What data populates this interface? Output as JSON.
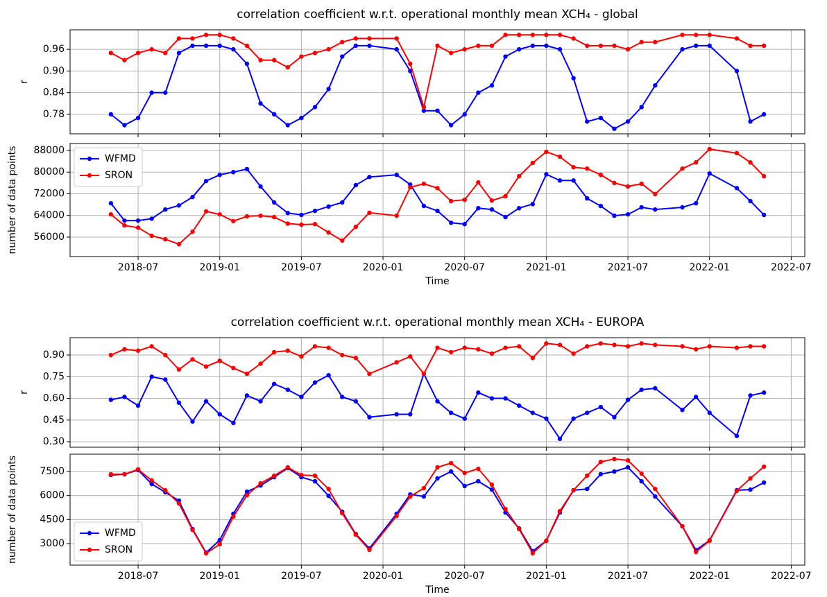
{
  "chart_data": [
    {
      "type": "line",
      "title": "correlation coefficient w.r.t. operational monthly mean XCH₄ - global",
      "ylabel": "r",
      "x": [
        "2018-05",
        "2018-06",
        "2018-07",
        "2018-08",
        "2018-09",
        "2018-10",
        "2018-11",
        "2018-12",
        "2019-01",
        "2019-02",
        "2019-03",
        "2019-04",
        "2019-05",
        "2019-06",
        "2019-07",
        "2019-08",
        "2019-09",
        "2019-10",
        "2019-11",
        "2019-12",
        "2020-02",
        "2020-03",
        "2020-04",
        "2020-05",
        "2020-06",
        "2020-07",
        "2020-08",
        "2020-09",
        "2020-10",
        "2020-11",
        "2020-12",
        "2021-01",
        "2021-02",
        "2021-03",
        "2021-04",
        "2021-05",
        "2021-06",
        "2021-07",
        "2021-08",
        "2021-09",
        "2021-11",
        "2021-12",
        "2022-01",
        "2022-03",
        "2022-04",
        "2022-05"
      ],
      "series": [
        {
          "color": "#0000ff",
          "values": [
            0.78,
            0.75,
            0.77,
            0.84,
            0.84,
            0.95,
            0.97,
            0.97,
            0.97,
            0.96,
            0.92,
            0.81,
            0.78,
            0.75,
            0.77,
            0.8,
            0.85,
            0.94,
            0.97,
            0.97,
            0.96,
            0.9,
            0.79,
            0.79,
            0.75,
            0.78,
            0.84,
            0.86,
            0.94,
            0.96,
            0.97,
            0.97,
            0.96,
            0.88,
            0.76,
            0.77,
            0.74,
            0.76,
            0.8,
            0.86,
            0.96,
            0.97,
            0.97,
            0.9,
            0.76,
            0.78
          ]
        },
        {
          "color": "#ff0000",
          "values": [
            0.95,
            0.93,
            0.95,
            0.96,
            0.95,
            0.99,
            0.99,
            1.0,
            1.0,
            0.99,
            0.97,
            0.93,
            0.93,
            0.91,
            0.94,
            0.95,
            0.96,
            0.98,
            0.99,
            0.99,
            0.99,
            0.92,
            0.8,
            0.97,
            0.95,
            0.96,
            0.97,
            0.97,
            1.0,
            1.0,
            1.0,
            1.0,
            1.0,
            0.99,
            0.97,
            0.97,
            0.97,
            0.96,
            0.98,
            0.98,
            1.0,
            1.0,
            1.0,
            0.99,
            0.97,
            0.97
          ]
        }
      ],
      "xlim": [
        "2018-02",
        "2022-08"
      ],
      "xticks": [
        "2018-07",
        "2019-01",
        "2019-07",
        "2020-01",
        "2020-07",
        "2021-01",
        "2021-07",
        "2022-01",
        "2022-07"
      ],
      "xtick_labels": false,
      "ylim": [
        0.726,
        1.014
      ],
      "yticks": [
        0.78,
        0.84,
        {
          "value": 0.9,
          "label": "0.90"
        },
        0.96
      ],
      "grid": true
    },
    {
      "type": "line",
      "ylabel": "number of data points",
      "xlabel": "Time",
      "x": [
        "2018-05",
        "2018-06",
        "2018-07",
        "2018-08",
        "2018-09",
        "2018-10",
        "2018-11",
        "2018-12",
        "2019-01",
        "2019-02",
        "2019-03",
        "2019-04",
        "2019-05",
        "2019-06",
        "2019-07",
        "2019-08",
        "2019-09",
        "2019-10",
        "2019-11",
        "2019-12",
        "2020-02",
        "2020-03",
        "2020-04",
        "2020-05",
        "2020-06",
        "2020-07",
        "2020-08",
        "2020-09",
        "2020-10",
        "2020-11",
        "2020-12",
        "2021-01",
        "2021-02",
        "2021-03",
        "2021-04",
        "2021-05",
        "2021-06",
        "2021-07",
        "2021-08",
        "2021-09",
        "2021-11",
        "2021-12",
        "2022-01",
        "2022-03",
        "2022-04",
        "2022-05"
      ],
      "series": [
        {
          "name": "WFMD",
          "color": "#0000ff",
          "values": [
            68500,
            62100,
            62100,
            62800,
            66200,
            67700,
            70800,
            76700,
            79000,
            80000,
            81100,
            74700,
            68800,
            64900,
            64200,
            65700,
            67300,
            68800,
            75200,
            78200,
            79000,
            75400,
            67500,
            65700,
            61300,
            60800,
            66700,
            66200,
            63400,
            66700,
            68200,
            79200,
            76900,
            76900,
            70300,
            67500,
            63900,
            64400,
            67000,
            66200,
            67000,
            68500,
            79500,
            74100,
            69300,
            64200
          ]
        },
        {
          "name": "SRON",
          "color": "#ff0000",
          "values": [
            64400,
            60300,
            59500,
            56500,
            55200,
            53400,
            58000,
            65500,
            64400,
            61900,
            63700,
            63900,
            63400,
            61000,
            60600,
            60800,
            57700,
            54700,
            59800,
            65000,
            63900,
            74400,
            75700,
            74100,
            69300,
            69800,
            76200,
            69500,
            71100,
            78500,
            83400,
            87500,
            85700,
            81800,
            81300,
            79000,
            76000,
            74700,
            75700,
            71900,
            81300,
            83600,
            88500,
            87000,
            83600,
            78500
          ]
        }
      ],
      "xlim": [
        "2018-02",
        "2022-08"
      ],
      "xticks": [
        "2018-07",
        "2019-01",
        "2019-07",
        "2020-01",
        "2020-07",
        "2021-01",
        "2021-07",
        "2022-01",
        "2022-07"
      ],
      "ylim": [
        48820,
        90560
      ],
      "yticks": [
        56000,
        64000,
        72000,
        80000,
        88000
      ],
      "grid": true,
      "legend": "upper left"
    },
    {
      "type": "line",
      "title": "correlation coefficient w.r.t. operational monthly mean XCH₄ - EUROPA",
      "ylabel": "r",
      "x": [
        "2018-05",
        "2018-06",
        "2018-07",
        "2018-08",
        "2018-09",
        "2018-10",
        "2018-11",
        "2018-12",
        "2019-01",
        "2019-02",
        "2019-03",
        "2019-04",
        "2019-05",
        "2019-06",
        "2019-07",
        "2019-08",
        "2019-09",
        "2019-10",
        "2019-11",
        "2019-12",
        "2020-02",
        "2020-03",
        "2020-04",
        "2020-05",
        "2020-06",
        "2020-07",
        "2020-08",
        "2020-09",
        "2020-10",
        "2020-11",
        "2020-12",
        "2021-01",
        "2021-02",
        "2021-03",
        "2021-04",
        "2021-05",
        "2021-06",
        "2021-07",
        "2021-08",
        "2021-09",
        "2021-11",
        "2021-12",
        "2022-01",
        "2022-03",
        "2022-04",
        "2022-05"
      ],
      "series": [
        {
          "color": "#0000ff",
          "values": [
            0.59,
            0.61,
            0.55,
            0.75,
            0.73,
            0.57,
            0.44,
            0.58,
            0.49,
            0.43,
            0.62,
            0.58,
            0.7,
            0.66,
            0.61,
            0.71,
            0.76,
            0.61,
            0.58,
            0.47,
            0.49,
            0.49,
            0.77,
            0.58,
            0.5,
            0.46,
            0.64,
            0.6,
            0.6,
            0.55,
            0.5,
            0.46,
            0.32,
            0.46,
            0.5,
            0.54,
            0.47,
            0.59,
            0.66,
            0.67,
            0.52,
            0.61,
            0.5,
            0.34,
            0.62,
            0.64
          ]
        },
        {
          "color": "#ff0000",
          "values": [
            0.9,
            0.94,
            0.93,
            0.96,
            0.9,
            0.8,
            0.87,
            0.82,
            0.86,
            0.81,
            0.77,
            0.84,
            0.92,
            0.93,
            0.89,
            0.96,
            0.95,
            0.9,
            0.88,
            0.77,
            0.85,
            0.89,
            0.77,
            0.95,
            0.92,
            0.95,
            0.94,
            0.91,
            0.95,
            0.96,
            0.88,
            0.98,
            0.97,
            0.91,
            0.96,
            0.98,
            0.97,
            0.96,
            0.98,
            0.97,
            0.96,
            0.94,
            0.96,
            0.95,
            0.96,
            0.96
          ]
        }
      ],
      "xlim": [
        "2018-02",
        "2022-08"
      ],
      "xticks": [
        "2018-07",
        "2019-01",
        "2019-07",
        "2020-01",
        "2020-07",
        "2021-01",
        "2021-07",
        "2022-01",
        "2022-07"
      ],
      "xtick_labels": false,
      "ylim": [
        0.262,
        1.02
      ],
      "yticks": [
        {
          "value": 0.3,
          "label": "0.30"
        },
        0.45,
        {
          "value": 0.6,
          "label": "0.60"
        },
        0.75,
        {
          "value": 0.9,
          "label": "0.90"
        }
      ],
      "grid": true
    },
    {
      "type": "line",
      "ylabel": "number of data points",
      "xlabel": "Time",
      "x": [
        "2018-05",
        "2018-06",
        "2018-07",
        "2018-08",
        "2018-09",
        "2018-10",
        "2018-11",
        "2018-12",
        "2019-01",
        "2019-02",
        "2019-03",
        "2019-04",
        "2019-05",
        "2019-06",
        "2019-07",
        "2019-08",
        "2019-09",
        "2019-10",
        "2019-11",
        "2019-12",
        "2020-02",
        "2020-03",
        "2020-04",
        "2020-05",
        "2020-06",
        "2020-07",
        "2020-08",
        "2020-09",
        "2020-10",
        "2020-11",
        "2020-12",
        "2021-01",
        "2021-02",
        "2021-03",
        "2021-04",
        "2021-05",
        "2021-06",
        "2021-07",
        "2021-08",
        "2021-09",
        "2021-11",
        "2021-12",
        "2022-01",
        "2022-03",
        "2022-04",
        "2022-05"
      ],
      "series": [
        {
          "name": "WFMD",
          "color": "#0000ff",
          "values": [
            7280,
            7330,
            7590,
            6720,
            6200,
            5680,
            3910,
            2440,
            3220,
            4860,
            6240,
            6630,
            7150,
            7710,
            7150,
            6890,
            5980,
            4990,
            3600,
            2700,
            4860,
            6070,
            5940,
            7070,
            7500,
            6590,
            6890,
            6370,
            4940,
            3950,
            2530,
            3180,
            4940,
            6330,
            6410,
            7330,
            7500,
            7760,
            6890,
            5940,
            4080,
            2600,
            3200,
            6330,
            6370,
            6810
          ]
        },
        {
          "name": "SRON",
          "color": "#ff0000",
          "values": [
            7330,
            7330,
            7630,
            6940,
            6330,
            5510,
            3860,
            2400,
            2960,
            4680,
            6020,
            6760,
            7240,
            7760,
            7280,
            7240,
            6410,
            4900,
            3560,
            2610,
            4730,
            5940,
            6460,
            7760,
            8020,
            7410,
            7670,
            6680,
            5160,
            3910,
            2400,
            3180,
            5030,
            6330,
            7240,
            8100,
            8280,
            8190,
            7370,
            6410,
            4080,
            2480,
            3180,
            6290,
            7070,
            7800
          ]
        }
      ],
      "xlim": [
        "2018-02",
        "2022-08"
      ],
      "xticks": [
        "2018-07",
        "2019-01",
        "2019-07",
        "2020-01",
        "2020-07",
        "2021-01",
        "2021-07",
        "2022-01",
        "2022-07"
      ],
      "ylim": [
        1660,
        8580
      ],
      "yticks": [
        3000,
        4500,
        6000,
        7500
      ],
      "grid": true,
      "legend": "lower left"
    }
  ]
}
